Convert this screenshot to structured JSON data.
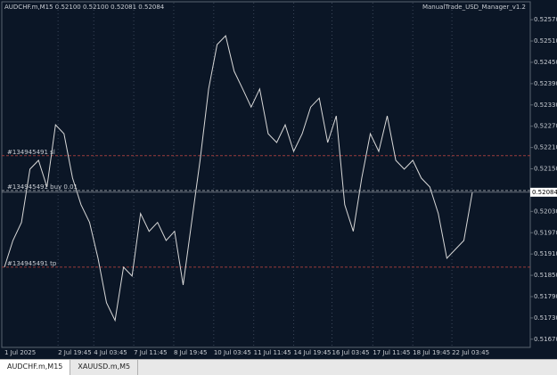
{
  "chart_data": {
    "type": "line",
    "title": "AUDCHF.m,M15  0.52100 0.52100 0.52081 0.52084",
    "subtitle": "ManualTrade_USD_Manager_v1.2",
    "color": "#d8d8d8",
    "values": [
      0.51873,
      0.51948,
      0.51999,
      0.52149,
      0.52174,
      0.52099,
      0.52274,
      0.52249,
      0.52124,
      0.52049,
      0.51999,
      0.51898,
      0.51773,
      0.51723,
      0.51873,
      0.51848,
      0.52024,
      0.51974,
      0.51999,
      0.51948,
      0.51974,
      0.51823,
      0.51999,
      0.52174,
      0.52375,
      0.525,
      0.52525,
      0.52425,
      0.52375,
      0.52324,
      0.52375,
      0.52249,
      0.52224,
      0.52274,
      0.52199,
      0.52249,
      0.52324,
      0.52349,
      0.52224,
      0.52299,
      0.52049,
      0.51974,
      0.52124,
      0.52249,
      0.52199,
      0.52299,
      0.52174,
      0.52149,
      0.52174,
      0.52124,
      0.52099,
      0.52024,
      0.51898,
      0.51923,
      0.51948,
      0.52084
    ],
    "xlim": [
      0,
      55
    ],
    "xticks": [
      {
        "value": 0,
        "label": "1 Jul 2025"
      },
      {
        "value": 6.3,
        "label": "2 Jul 19:45"
      },
      {
        "value": 10.5,
        "label": "4 Jul 03:45"
      },
      {
        "value": 15.2,
        "label": "7 Jul 11:45"
      },
      {
        "value": 19.9,
        "label": "8 Jul 19:45"
      },
      {
        "value": 24.6,
        "label": "10 Jul 03:45"
      },
      {
        "value": 29.3,
        "label": "11 Jul 11:45"
      },
      {
        "value": 34.0,
        "label": "14 Jul 19:45"
      },
      {
        "value": 38.5,
        "label": "16 Jul 03:45"
      },
      {
        "value": 43.3,
        "label": "17 Jul 11:45"
      },
      {
        "value": 48.0,
        "label": "18 Jul 19:45"
      },
      {
        "value": 52.6,
        "label": "22 Jul 03:45"
      }
    ],
    "ylim": [
      0.51647,
      0.52618
    ],
    "yticks": [
      {
        "value": 0.5257,
        "label": "0.52570"
      },
      {
        "value": 0.5251,
        "label": "0.52510"
      },
      {
        "value": 0.5245,
        "label": "0.52450"
      },
      {
        "value": 0.5239,
        "label": "0.52390"
      },
      {
        "value": 0.5233,
        "label": "0.52330"
      },
      {
        "value": 0.5227,
        "label": "0.52270"
      },
      {
        "value": 0.5221,
        "label": "0.52210"
      },
      {
        "value": 0.5215,
        "label": "0.52150"
      },
      {
        "value": 0.5203,
        "label": "0.52030"
      },
      {
        "value": 0.5197,
        "label": "0.51970"
      },
      {
        "value": 0.5191,
        "label": "0.51910"
      },
      {
        "value": 0.5185,
        "label": "0.51850"
      },
      {
        "value": 0.5179,
        "label": "0.51790"
      },
      {
        "value": 0.5173,
        "label": "0.51730"
      },
      {
        "value": 0.5167,
        "label": "0.51670"
      }
    ],
    "grid": true,
    "last_price": 0.52084,
    "orders": [
      {
        "label": "#134945491 sl",
        "price": 0.52187,
        "color": "#9a3b3b"
      },
      {
        "label": "#134945491 buy 0.01",
        "price": 0.52089,
        "color": "#8a8f96"
      },
      {
        "label": "#134945491 tp",
        "price": 0.51873,
        "color": "#9a3b3b"
      }
    ]
  },
  "tabs": [
    "AUDCHF.m,M15",
    "XAUUSD.m,M5"
  ]
}
